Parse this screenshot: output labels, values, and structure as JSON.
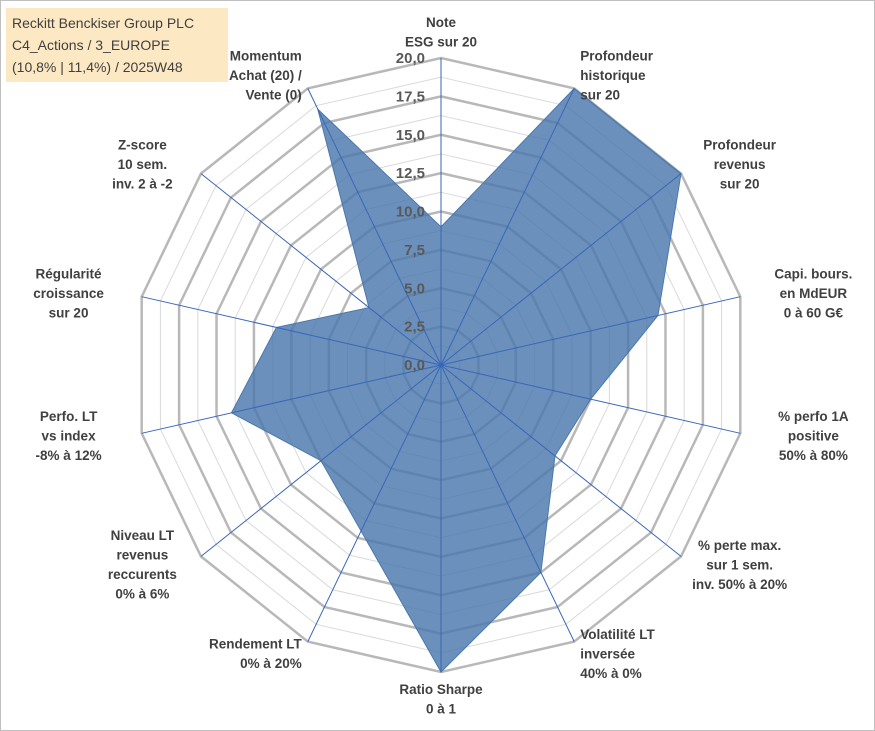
{
  "chart_data": {
    "type": "radar",
    "title_lines": [
      "Reckitt Benckiser Group PLC",
      "C4_Actions / 3_EUROPE",
      "(10,8% | 11,4%) / 2025W48"
    ],
    "scale": {
      "min": 0,
      "max": 20,
      "step": 2.5
    },
    "tick_labels": [
      "0,0",
      "2,5",
      "5,0",
      "7,5",
      "10,0",
      "12,5",
      "15,0",
      "17,5",
      "20,0"
    ],
    "axes": [
      {
        "label": [
          "Note",
          "ESG sur 20"
        ],
        "value": 9.0
      },
      {
        "label": [
          "Profondeur",
          "historique",
          "sur 20"
        ],
        "value": 20.0
      },
      {
        "label": [
          "Profondeur",
          "revenus",
          "sur 20"
        ],
        "value": 20.0
      },
      {
        "label": [
          "Capi. bours.",
          "en MdEUR",
          "0 à 60 G€"
        ],
        "value": 14.5
      },
      {
        "label": [
          "% perfo 1A",
          "positive",
          "50% à 80%"
        ],
        "value": 10.0
      },
      {
        "label": [
          "% perte max.",
          "sur 1 sem.",
          "inv. 50% à 20%"
        ],
        "value": 9.5
      },
      {
        "label": [
          "Volatilité LT",
          "inversée",
          "40% à 0%"
        ],
        "value": 15.0
      },
      {
        "label": [
          "Ratio Sharpe",
          "0 à 1"
        ],
        "value": 20.0
      },
      {
        "label": [
          "Rendement LT",
          "0% à 20%"
        ],
        "value": 12.0
      },
      {
        "label": [
          "Niveau LT",
          "revenus",
          "reccurents",
          "0% à 6%"
        ],
        "value": 10.0
      },
      {
        "label": [
          "Perfo. LT",
          "vs index",
          "-8% à 12%"
        ],
        "value": 14.0
      },
      {
        "label": [
          "Régularité",
          "croissance",
          "sur 20"
        ],
        "value": 11.0
      },
      {
        "label": [
          "Z-score",
          "10 sem.",
          "inv. 2 à -2"
        ],
        "value": 6.0
      },
      {
        "label": [
          "Momentum",
          "Achat (20) /",
          "Vente (0)"
        ],
        "value": 18.5
      }
    ],
    "colors": {
      "fill": "#4a78ad",
      "grid_outer": "#b8b8b8",
      "grid_inner": "#d9d9d9",
      "spoke": "#3a66b8",
      "title_bg": "#fce9c4"
    }
  }
}
